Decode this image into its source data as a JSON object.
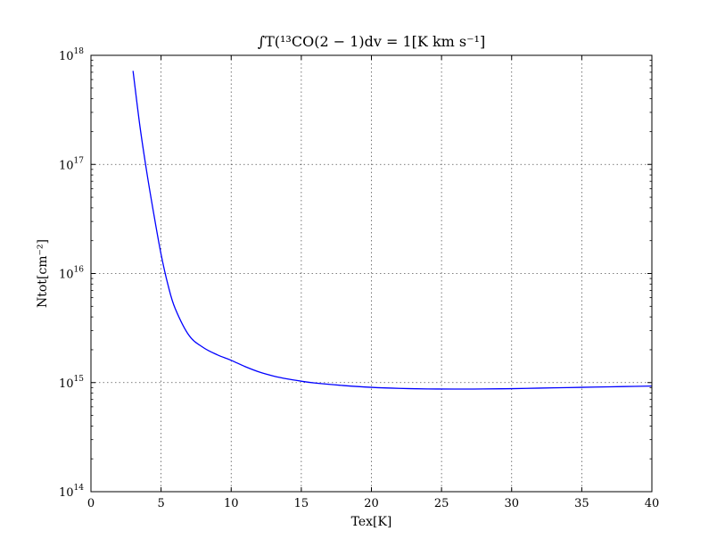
{
  "chart_data": {
    "type": "line",
    "title": "∫T(¹³CO(2 − 1)dv = 1[K km s⁻¹]",
    "xlabel": "Tex[K]",
    "ylabel": "Ntot[cm⁻²]",
    "xlim": [
      0,
      40
    ],
    "ylim": [
      100000000000000.0,
      1e+18
    ],
    "yscale": "log",
    "grid": true,
    "x_ticks": [
      0,
      5,
      10,
      15,
      20,
      25,
      30,
      35,
      40
    ],
    "x_tick_labels": [
      "0",
      "5",
      "10",
      "15",
      "20",
      "25",
      "30",
      "35",
      "40"
    ],
    "y_ticks": [
      100000000000000.0,
      1000000000000000.0,
      1e+16,
      1e+17,
      1e+18
    ],
    "y_tick_labels": [
      {
        "base": "10",
        "exp": "14"
      },
      {
        "base": "10",
        "exp": "15"
      },
      {
        "base": "10",
        "exp": "16"
      },
      {
        "base": "10",
        "exp": "17"
      },
      {
        "base": "10",
        "exp": "18"
      }
    ],
    "series": [
      {
        "color": "#0000ff",
        "x": [
          3,
          3.5,
          4,
          4.5,
          5,
          5.5,
          6,
          7,
          8,
          9,
          10,
          11,
          12,
          13,
          14,
          15,
          16,
          18,
          20,
          22,
          24,
          26,
          27,
          28,
          30,
          32,
          34,
          36,
          38,
          40
        ],
        "y": [
          7.2e+17,
          2.2e+17,
          8.2e+16,
          3.4e+16,
          1.5e+16,
          7800000000000000.0,
          4800000000000000.0,
          2700000000000000.0,
          2100000000000000.0,
          1800000000000000.0,
          1600000000000000.0,
          1400000000000000.0,
          1250000000000000.0,
          1150000000000000.0,
          1080000000000000.0,
          1030000000000000.0,
          990000000000000.0,
          940000000000000.0,
          905000000000000.0,
          885000000000000.0,
          875000000000000.0,
          872000000000000.0,
          872000000000000.0,
          874000000000000.0,
          880000000000000.0,
          890000000000000.0,
          900000000000000.0,
          910000000000000.0,
          920000000000000.0,
          930000000000000.0
        ]
      }
    ]
  }
}
